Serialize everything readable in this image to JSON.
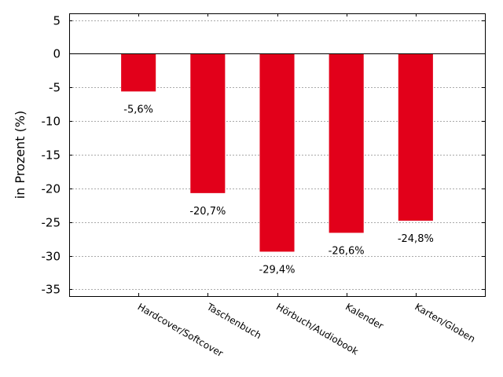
{
  "chart_data": {
    "type": "bar",
    "categories": [
      "Hardcover/Softcover",
      "Taschenbuch",
      "Hörbuch/Audiobook",
      "Kalender",
      "Karten/Globen"
    ],
    "values": [
      -5.6,
      -20.7,
      -29.4,
      -26.6,
      -24.8
    ],
    "data_labels": [
      "-5,6%",
      "-20,7%",
      "-29,4%",
      "-26,6%",
      "-24,8%"
    ],
    "title": "",
    "xlabel": "",
    "ylabel": "in Prozent (%)",
    "ylim": [
      -36,
      6
    ],
    "yticks": [
      5,
      0,
      -5,
      -10,
      -15,
      -20,
      -25,
      -30,
      -35
    ],
    "grid": true,
    "bar_color": "#e2001a",
    "grid_color": "#aaaaaa"
  }
}
